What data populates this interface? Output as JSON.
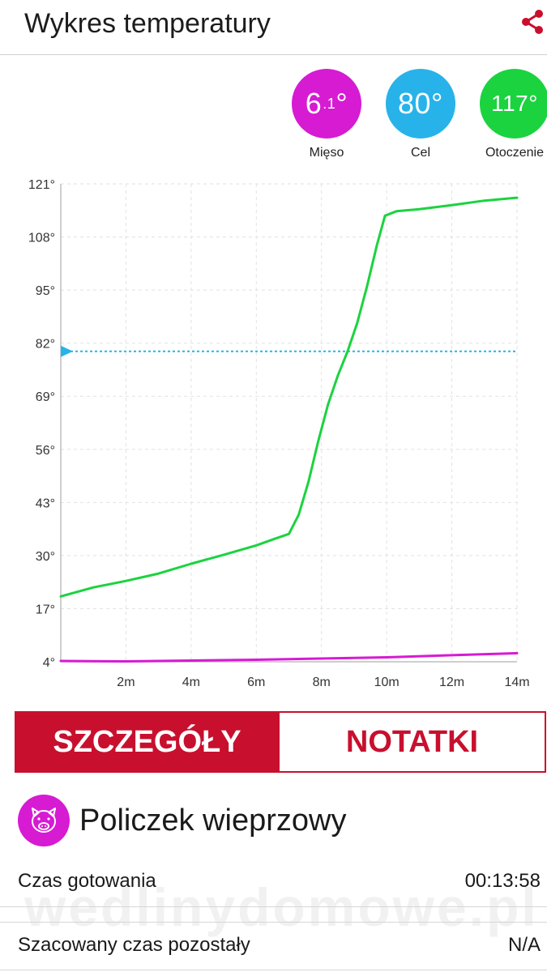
{
  "header": {
    "title": "Wykres temperatury"
  },
  "gauges": [
    {
      "main": "6",
      "sub": ".1",
      "unit": "°",
      "label": "Mięso",
      "color": "#d61bd3"
    },
    {
      "main": "80°",
      "label": "Cel",
      "color": "#27b3ea"
    },
    {
      "main": "117°",
      "label": "Otoczenie",
      "color": "#1bd33f"
    }
  ],
  "chart_data": {
    "type": "line",
    "ylim": [
      4,
      121
    ],
    "xlim": [
      0,
      14
    ],
    "y_ticks": [
      "4°",
      "17°",
      "30°",
      "43°",
      "56°",
      "69°",
      "82°",
      "95°",
      "108°",
      "121°"
    ],
    "x_ticks": [
      "2m",
      "4m",
      "6m",
      "8m",
      "10m",
      "12m",
      "14m"
    ],
    "x_tick_values": [
      2,
      4,
      6,
      8,
      10,
      12,
      14
    ],
    "target": 80,
    "target_color": "#27b3ea",
    "series": [
      {
        "color": "#1bd33f",
        "points": [
          [
            0,
            20
          ],
          [
            1,
            22.2
          ],
          [
            2,
            23.8
          ],
          [
            3,
            25.6
          ],
          [
            4,
            28
          ],
          [
            5,
            30.2
          ],
          [
            6,
            32.5
          ],
          [
            6.6,
            34.2
          ],
          [
            7,
            35.3
          ],
          [
            7.3,
            40
          ],
          [
            7.6,
            48
          ],
          [
            7.9,
            58
          ],
          [
            8.2,
            67
          ],
          [
            8.5,
            74
          ],
          [
            8.8,
            80
          ],
          [
            9.1,
            87
          ],
          [
            9.4,
            96
          ],
          [
            9.7,
            106
          ],
          [
            9.95,
            113.2
          ],
          [
            10.3,
            114.3
          ],
          [
            11,
            114.8
          ],
          [
            12,
            115.8
          ],
          [
            13,
            116.9
          ],
          [
            14,
            117.6
          ]
        ]
      },
      {
        "color": "#d61bd3",
        "points": [
          [
            0,
            4.2
          ],
          [
            2,
            4.1
          ],
          [
            4,
            4.3
          ],
          [
            6,
            4.5
          ],
          [
            8,
            4.8
          ],
          [
            10,
            5.1
          ],
          [
            12,
            5.6
          ],
          [
            14,
            6.1
          ]
        ]
      }
    ]
  },
  "tabs": {
    "details": "SZCZEGÓŁY",
    "notes": "NOTATKI"
  },
  "product": {
    "name": "Policzek wieprzowy",
    "icon": "pig-icon"
  },
  "info": {
    "cook_time_label": "Czas gotowania",
    "cook_time_value": "00:13:58",
    "remaining_label": "Szacowany czas pozostały",
    "remaining_value": "N/A"
  },
  "watermark": "wedlinydomowe.pl"
}
